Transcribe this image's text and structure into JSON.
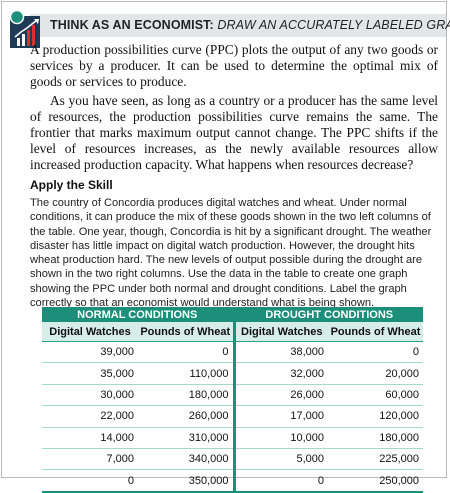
{
  "header": {
    "title": "THINK AS AN ECONOMIST:",
    "subtitle": "DRAW AN ACCURATELY LABELED GRAPH",
    "logo_icon": "economist-person-chart-icon",
    "band_color": "#e3e6e8"
  },
  "intro": {
    "paragraph1": "A production possibilities curve (PPC) plots the output of any two goods or services by a producer. It can be used to determine the optimal mix of goods or services to produce.",
    "paragraph2": "As you have seen, as long as a country or a producer has the same level of resources, the production possibilities curve remains the same. The frontier that marks maximum output cannot change. The PPC shifts if the level of resources increases, as the newly available resources allow increased production capacity. What happens when resources decrease?"
  },
  "skill": {
    "heading": "Apply the Skill",
    "text": "The country of Concordia produces digital watches and wheat. Under normal conditions, it can produce the mix of these goods shown in the two left columns of the table. One year, though, Concordia is hit by a significant drought. The weather disaster has little impact on digital watch production. However, the drought hits wheat production hard. The new levels of output possible during the drought are shown in the two right columns. Use the data in the table to create one graph showing the PPC under both normal and drought conditions. Label the graph correctly so that an economist would understand what is being shown."
  },
  "table": {
    "accent_color": "#1c8f7a",
    "group_headers": [
      "NORMAL CONDITIONS",
      "DROUGHT CONDITIONS"
    ],
    "columns": [
      "Digital Watches",
      "Pounds of Wheat",
      "Digital Watches",
      "Pounds of Wheat"
    ],
    "rows": [
      [
        "39,000",
        "0",
        "38,000",
        "0"
      ],
      [
        "35,000",
        "110,000",
        "32,000",
        "20,000"
      ],
      [
        "30,000",
        "180,000",
        "26,000",
        "60,000"
      ],
      [
        "22,000",
        "260,000",
        "17,000",
        "120,000"
      ],
      [
        "14,000",
        "310,000",
        "10,000",
        "180,000"
      ],
      [
        "7,000",
        "340,000",
        "5,000",
        "225,000"
      ],
      [
        "0",
        "350,000",
        "0",
        "250,000"
      ]
    ]
  }
}
